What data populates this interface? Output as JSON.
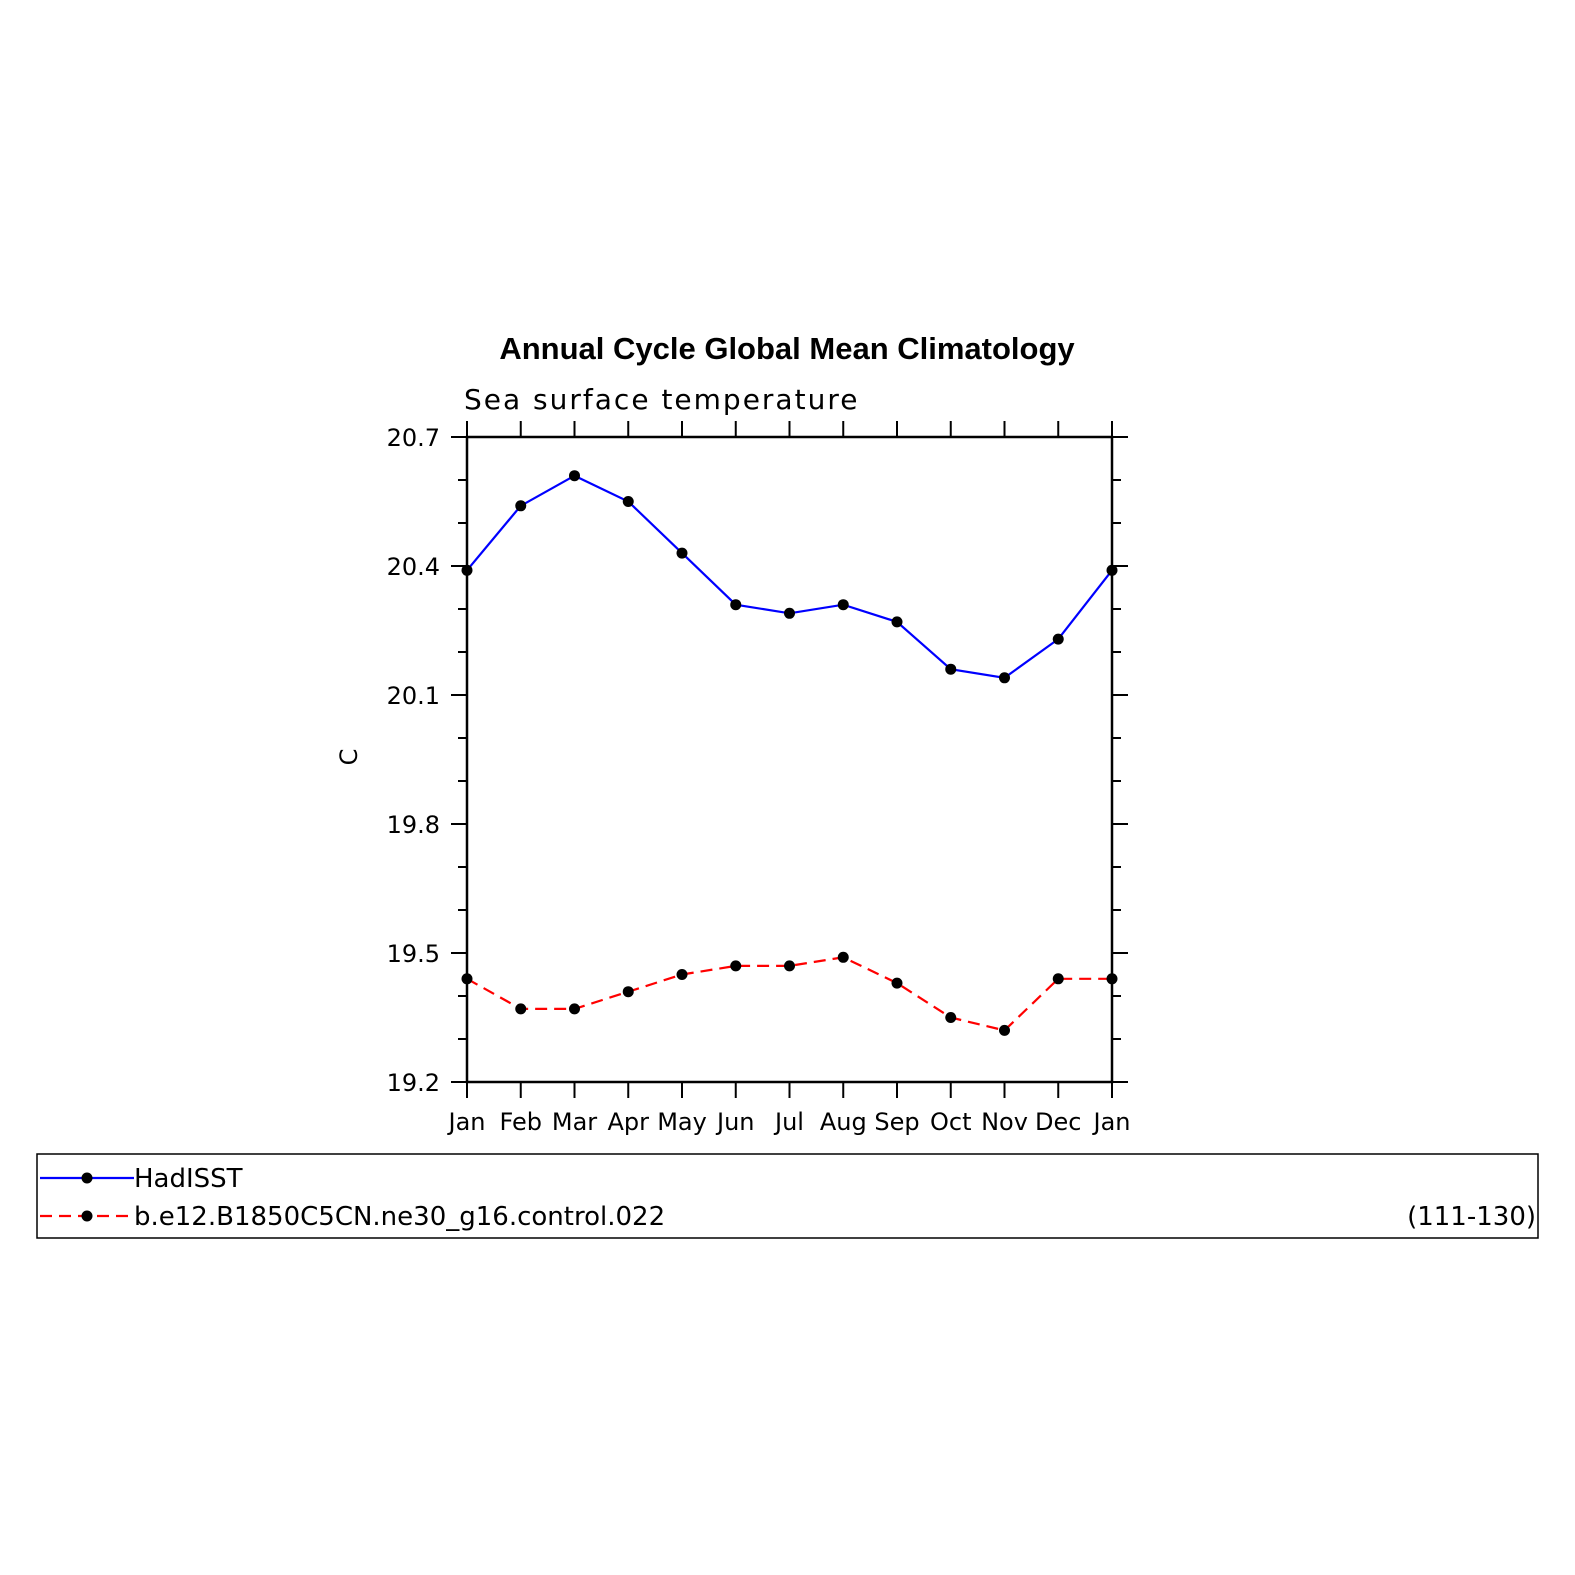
{
  "chart_data": {
    "type": "line",
    "title": "Annual Cycle Global Mean Climatology",
    "subtitle": "Sea surface temperature",
    "xlabel": "",
    "ylabel": "C",
    "categories": [
      "Jan",
      "Feb",
      "Mar",
      "Apr",
      "May",
      "Jun",
      "Jul",
      "Aug",
      "Sep",
      "Oct",
      "Nov",
      "Dec",
      "Jan"
    ],
    "yticks": [
      "20.7",
      "20.4",
      "20.1",
      "19.8",
      "19.5",
      "19.2"
    ],
    "ylim": [
      19.2,
      20.7
    ],
    "series": [
      {
        "name": "HadISST",
        "color": "#0000ff",
        "dash": "solid",
        "values": [
          20.39,
          20.54,
          20.61,
          20.55,
          20.43,
          20.31,
          20.29,
          20.31,
          20.27,
          20.16,
          20.14,
          20.23,
          20.39
        ]
      },
      {
        "name": "b.e12.B1850C5CN.ne30_g16.control.022",
        "color": "#ff0000",
        "dash": "dashed",
        "values": [
          19.44,
          19.37,
          19.37,
          19.41,
          19.45,
          19.47,
          19.47,
          19.49,
          19.43,
          19.35,
          19.32,
          19.44,
          19.44
        ]
      }
    ],
    "legend": {
      "placement": "bottom",
      "years": "(111-130)"
    },
    "grid": false
  }
}
